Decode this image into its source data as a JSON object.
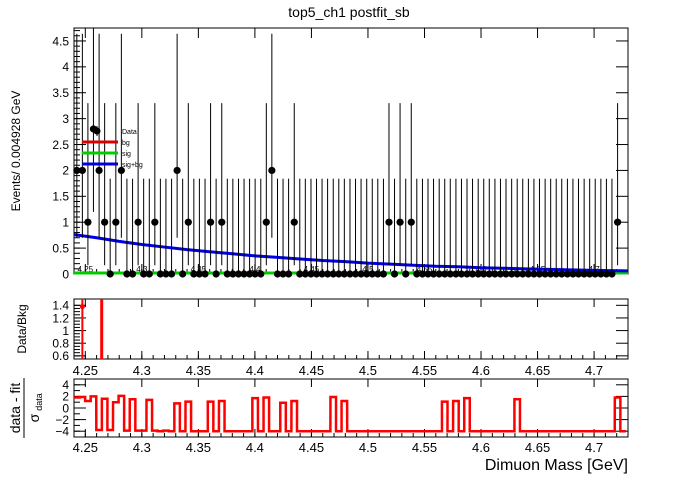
{
  "chart_data": [
    {
      "type": "scatter",
      "title": "top5_ch1   postfit_sb",
      "xlabel": "",
      "ylabel": "Events/ 0.004928 GeV",
      "xlim": [
        4.24,
        4.73
      ],
      "ylim": [
        0,
        4.75
      ],
      "x_ticks": [
        4.25,
        4.3,
        4.35,
        4.4,
        4.45,
        4.5,
        4.55,
        4.6,
        4.65,
        4.7
      ],
      "x_tick_labels": [
        "4.25",
        "4.3",
        "4.35",
        "4.4",
        "4.45",
        "4.5",
        "4.55",
        "4.6",
        "4.65",
        "4.7"
      ],
      "y_ticks": [
        0,
        0.5,
        1,
        1.5,
        2,
        2.5,
        3,
        3.5,
        4,
        4.5
      ],
      "y_tick_labels": [
        "0",
        "0.5",
        "1",
        "1.5",
        "2",
        "2.5",
        "3",
        "3.5",
        "4",
        "4.5"
      ],
      "legend_position": "top-left",
      "legend": [
        {
          "label": "Data",
          "color": "#000000",
          "style": "marker"
        },
        {
          "label": "bg",
          "color": "#d90000",
          "style": "line"
        },
        {
          "label": "sig",
          "color": "#00cc00",
          "style": "line"
        },
        {
          "label": "sig+bg",
          "color": "#0000e0",
          "style": "line"
        }
      ],
      "series": [
        {
          "name": "Data",
          "color": "#000000",
          "x": [
            4.2425,
            4.2474,
            4.2523,
            4.2572,
            4.2622,
            4.2671,
            4.272,
            4.277,
            4.2819,
            4.2868,
            4.2918,
            4.2967,
            4.3016,
            4.3066,
            4.3115,
            4.3164,
            4.3213,
            4.3263,
            4.3312,
            4.3361,
            4.3411,
            4.346,
            4.3509,
            4.3559,
            4.3608,
            4.3657,
            4.3707,
            4.3756,
            4.3805,
            4.3855,
            4.3904,
            4.3953,
            4.4002,
            4.4052,
            4.4101,
            4.415,
            4.42,
            4.4249,
            4.4298,
            4.4348,
            4.4397,
            4.4446,
            4.4496,
            4.4545,
            4.4594,
            4.4643,
            4.4693,
            4.4742,
            4.4791,
            4.4841,
            4.489,
            4.4939,
            4.4989,
            4.5038,
            4.5087,
            4.5137,
            4.5186,
            4.5235,
            4.5284,
            4.5334,
            4.5383,
            4.5432,
            4.5482,
            4.5531,
            4.558,
            4.563,
            4.5679,
            4.5728,
            4.5778,
            4.5827,
            4.5876,
            4.5925,
            4.5975,
            4.6024,
            4.6073,
            4.6123,
            4.6172,
            4.6221,
            4.6271,
            4.632,
            4.6369,
            4.6419,
            4.6468,
            4.6517,
            4.6567,
            4.6616,
            4.6665,
            4.6714,
            4.6764,
            4.6813,
            4.6862,
            4.6912,
            4.6961,
            4.701,
            4.706,
            4.7109,
            4.7158,
            4.7208
          ],
          "y": [
            2,
            2,
            1,
            2.8,
            2,
            1,
            0,
            1,
            2,
            0,
            0,
            1,
            0,
            0,
            1,
            0,
            0,
            0,
            2,
            0,
            1,
            0,
            0,
            0,
            1,
            0,
            1,
            0,
            0,
            0,
            0,
            0,
            0,
            0,
            1,
            2,
            0,
            0,
            0,
            1,
            0,
            0,
            0,
            0,
            0,
            0,
            0,
            0,
            0,
            0,
            0,
            0,
            0,
            0,
            0,
            0,
            1,
            0,
            1,
            0,
            1,
            0,
            0,
            0,
            0,
            0,
            0,
            0,
            0,
            0,
            0,
            0,
            0,
            0,
            0,
            0,
            0,
            0,
            0,
            0,
            0,
            0,
            0,
            0,
            0,
            0,
            0,
            0,
            0,
            0,
            0,
            0,
            0,
            0,
            0,
            0,
            0,
            1
          ]
        },
        {
          "name": "bg",
          "color": "#d90000",
          "x": [
            4.24,
            4.73
          ],
          "y": [
            0.005,
            0.005
          ]
        },
        {
          "name": "sig",
          "color": "#00cc00",
          "x": [
            4.24,
            4.73
          ],
          "y": [
            0.0,
            0.0
          ]
        },
        {
          "name": "sig+bg",
          "color": "#0000e0",
          "x": [
            4.24,
            4.26,
            4.28,
            4.3,
            4.32,
            4.34,
            4.36,
            4.38,
            4.4,
            4.42,
            4.44,
            4.46,
            4.48,
            4.5,
            4.52,
            4.54,
            4.56,
            4.58,
            4.6,
            4.62,
            4.64,
            4.66,
            4.68,
            4.7,
            4.73
          ],
          "y": [
            0.76,
            0.7,
            0.63,
            0.57,
            0.52,
            0.47,
            0.43,
            0.39,
            0.35,
            0.32,
            0.29,
            0.26,
            0.24,
            0.21,
            0.19,
            0.17,
            0.15,
            0.14,
            0.12,
            0.11,
            0.1,
            0.09,
            0.08,
            0.07,
            0.06
          ]
        }
      ]
    },
    {
      "type": "scatter",
      "title": "",
      "xlabel": "",
      "ylabel": "Data/Bkg",
      "xlim": [
        4.24,
        4.73
      ],
      "ylim": [
        0.55,
        1.5
      ],
      "x_ticks": [
        4.25,
        4.3,
        4.35,
        4.4,
        4.45,
        4.5,
        4.55,
        4.6,
        4.65,
        4.7
      ],
      "x_tick_labels": [
        "4.25",
        "4.3",
        "4.35",
        "4.4",
        "4.45",
        "4.5",
        "4.55",
        "4.6",
        "4.65",
        "4.7"
      ],
      "y_ticks": [
        0.6,
        0.8,
        1,
        1.2,
        1.4
      ],
      "y_tick_labels": [
        "0.6",
        "0.8",
        "1",
        "1.2",
        "1.4"
      ],
      "series": [
        {
          "name": "",
          "color": "#ff0000",
          "x": [
            4.2474,
            4.2645
          ],
          "y": [
            1.38,
            1.5
          ]
        }
      ]
    },
    {
      "type": "line",
      "title": "",
      "xlabel": "Dimuon Mass [GeV]",
      "ylabel": "data - fit / σdata",
      "ylabel_num": "data - fit",
      "ylabel_den": "σ",
      "ylabel_den_sub": "data",
      "xlim": [
        4.24,
        4.73
      ],
      "ylim": [
        -5,
        5
      ],
      "x_ticks": [
        4.25,
        4.3,
        4.35,
        4.4,
        4.45,
        4.5,
        4.55,
        4.6,
        4.65,
        4.7
      ],
      "x_tick_labels": [
        "4.25",
        "4.3",
        "4.35",
        "4.4",
        "4.45",
        "4.5",
        "4.55",
        "4.6",
        "4.65",
        "4.7"
      ],
      "y_ticks": [
        -4,
        -2,
        0,
        2,
        4
      ],
      "y_tick_labels": [
        "−4",
        "−2",
        "0",
        "2",
        "4"
      ],
      "series": [
        {
          "name": "",
          "color": "#ff0000",
          "bin_width": 0.004928,
          "x": [
            4.2425,
            4.2474,
            4.2523,
            4.2572,
            4.2622,
            4.2671,
            4.272,
            4.277,
            4.2819,
            4.2868,
            4.2918,
            4.2967,
            4.3016,
            4.3066,
            4.3115,
            4.3164,
            4.3213,
            4.3263,
            4.3312,
            4.3361,
            4.3411,
            4.346,
            4.3509,
            4.3559,
            4.3608,
            4.3657,
            4.3707,
            4.3756,
            4.3805,
            4.3855,
            4.3904,
            4.3953,
            4.4002,
            4.4052,
            4.4101,
            4.415,
            4.42,
            4.4249,
            4.4298,
            4.4348,
            4.4397,
            4.4446,
            4.4496,
            4.4545,
            4.4594,
            4.4643,
            4.4693,
            4.4742,
            4.4791,
            4.4841,
            4.489,
            4.4939,
            4.4989,
            4.5038,
            4.5087,
            4.5137,
            4.5186,
            4.5235,
            4.5284,
            4.5334,
            4.5383,
            4.5432,
            4.5482,
            4.5531,
            4.558,
            4.563,
            4.5679,
            4.5728,
            4.5778,
            4.5827,
            4.5876,
            4.5925,
            4.5975,
            4.6024,
            4.6073,
            4.6123,
            4.6172,
            4.6221,
            4.6271,
            4.632,
            4.6369,
            4.6419,
            4.6468,
            4.6517,
            4.6567,
            4.6616,
            4.6665,
            4.6714,
            4.6764,
            4.6813,
            4.6862,
            4.6912,
            4.6961,
            4.701,
            4.706,
            4.7109,
            4.7158,
            4.7208,
            4.7257
          ],
          "y": [
            1.8,
            1.9,
            1.2,
            2.0,
            -3.8,
            1.6,
            -3.8,
            1.0,
            2.1,
            -3.9,
            1.5,
            -3.9,
            -3.9,
            1.4,
            -3.9,
            -4.0,
            -3.9,
            -4.0,
            0.8,
            -4.0,
            1.1,
            -4.0,
            -4.0,
            -4.0,
            1.1,
            -4.0,
            1.2,
            -4.0,
            -4.0,
            -4.0,
            -4.0,
            -4.0,
            1.7,
            -4.0,
            1.8,
            -4.0,
            -4.0,
            0.9,
            -4.0,
            1.2,
            -4.0,
            -4.0,
            -4.0,
            -4.0,
            -4.0,
            -4.0,
            1.9,
            -4.0,
            1.2,
            -4.0,
            -4.0,
            -4.0,
            -4.0,
            -4.0,
            -4.0,
            -4.0,
            -4.0,
            -4.0,
            -4.0,
            -4.0,
            -4.0,
            -4.0,
            -4.0,
            -4.0,
            -4.0,
            -4.0,
            1.1,
            -4.0,
            1.2,
            -4.0,
            1.7,
            -4.0,
            -4.0,
            -4.0,
            -4.0,
            -4.0,
            -4.0,
            -4.0,
            -4.0,
            1.5,
            -4.0,
            -4.0,
            -4.0,
            -4.0,
            -4.0,
            -4.0,
            -4.0,
            -4.0,
            -4.0,
            -4.0,
            -4.0,
            -4.0,
            -4.0,
            -4.0,
            -4.0,
            -4.0,
            -4.0,
            1.8,
            -4.0
          ]
        }
      ]
    }
  ]
}
